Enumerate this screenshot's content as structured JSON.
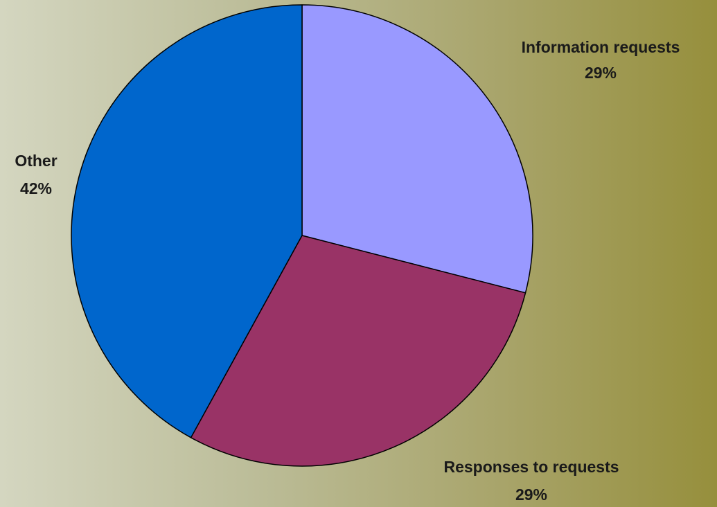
{
  "chart_data": {
    "type": "pie",
    "categories": [
      "Information requests",
      "Responses to requests",
      "Other"
    ],
    "values": [
      29,
      29,
      42
    ],
    "value_labels": [
      "29%",
      "29%",
      "42%"
    ],
    "colors": [
      "#9999ff",
      "#993366",
      "#0066cc"
    ],
    "start_angle": "12 o'clock",
    "direction": "clockwise",
    "legend": "none"
  }
}
